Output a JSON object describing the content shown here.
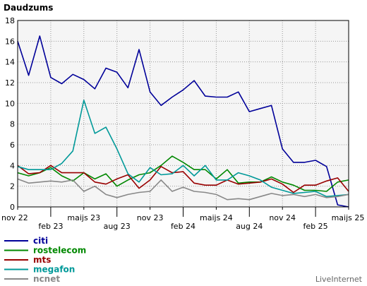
{
  "chart_data": {
    "type": "line",
    "title": "Daudzums",
    "ylim": [
      0,
      18
    ],
    "yticks": [
      0,
      2,
      4,
      6,
      8,
      10,
      12,
      14,
      16,
      18
    ],
    "x_count": 31,
    "x_ticks": [
      {
        "label": "nov 22",
        "index": 0,
        "row": 0
      },
      {
        "label": "feb 23",
        "index": 3,
        "row": 1
      },
      {
        "label": "maijs 23",
        "index": 6,
        "row": 0
      },
      {
        "label": "aug 23",
        "index": 9,
        "row": 1
      },
      {
        "label": "nov 23",
        "index": 12,
        "row": 0
      },
      {
        "label": "feb 24",
        "index": 15,
        "row": 1
      },
      {
        "label": "maijs 24",
        "index": 18,
        "row": 0
      },
      {
        "label": "aug 24",
        "index": 21,
        "row": 1
      },
      {
        "label": "nov 24",
        "index": 24,
        "row": 0
      },
      {
        "label": "feb 25",
        "index": 27,
        "row": 1
      },
      {
        "label": "maijs 25",
        "index": 30,
        "row": 0
      }
    ],
    "grid": true,
    "legend_position": "bottom-left",
    "series": [
      {
        "name": "citi",
        "color": "#000099",
        "values": [
          16.0,
          12.7,
          16.5,
          12.5,
          11.9,
          12.8,
          12.3,
          11.4,
          13.4,
          13.0,
          11.5,
          15.2,
          11.1,
          9.8,
          10.6,
          11.3,
          12.2,
          10.7,
          10.6,
          10.6,
          11.1,
          9.2,
          9.5,
          9.8,
          5.6,
          4.3,
          4.3,
          4.5,
          3.9,
          0.2,
          0.0
        ]
      },
      {
        "name": "rostelecom",
        "color": "#008800",
        "values": [
          3.3,
          3.0,
          3.3,
          3.8,
          3.0,
          2.5,
          3.3,
          2.7,
          3.2,
          2.0,
          2.6,
          3.1,
          3.3,
          4.0,
          4.9,
          4.3,
          3.6,
          3.6,
          2.7,
          3.6,
          2.3,
          2.4,
          2.4,
          2.9,
          2.4,
          2.1,
          1.6,
          1.6,
          1.5,
          2.4,
          2.6
        ]
      },
      {
        "name": "mts",
        "color": "#990000",
        "values": [
          4.0,
          3.2,
          3.3,
          4.0,
          3.3,
          3.3,
          3.3,
          2.4,
          2.2,
          2.7,
          3.1,
          1.8,
          2.6,
          3.9,
          3.3,
          3.4,
          2.3,
          2.1,
          2.1,
          2.6,
          2.2,
          2.3,
          2.4,
          2.7,
          2.2,
          1.4,
          2.1,
          2.1,
          2.5,
          2.8,
          1.5
        ]
      },
      {
        "name": "megafon",
        "color": "#009999",
        "values": [
          3.9,
          3.6,
          3.6,
          3.6,
          4.2,
          5.4,
          10.3,
          7.1,
          7.7,
          5.6,
          3.2,
          2.4,
          3.8,
          3.1,
          3.2,
          4.0,
          3.0,
          4.0,
          2.6,
          2.6,
          3.3,
          3.0,
          2.6,
          1.9,
          1.6,
          1.3,
          1.4,
          1.5,
          1.0,
          1.1,
          1.2
        ]
      },
      {
        "name": "ncnet",
        "color": "#888888",
        "values": [
          2.7,
          2.3,
          2.4,
          2.5,
          2.4,
          2.6,
          1.5,
          2.0,
          1.2,
          0.9,
          1.2,
          1.4,
          1.5,
          2.6,
          1.5,
          1.9,
          1.5,
          1.4,
          1.2,
          0.7,
          0.8,
          0.7,
          1.0,
          1.3,
          1.1,
          1.2,
          1.0,
          1.2,
          0.9,
          1.0,
          1.2
        ]
      }
    ]
  },
  "brand": "LiveInternet"
}
